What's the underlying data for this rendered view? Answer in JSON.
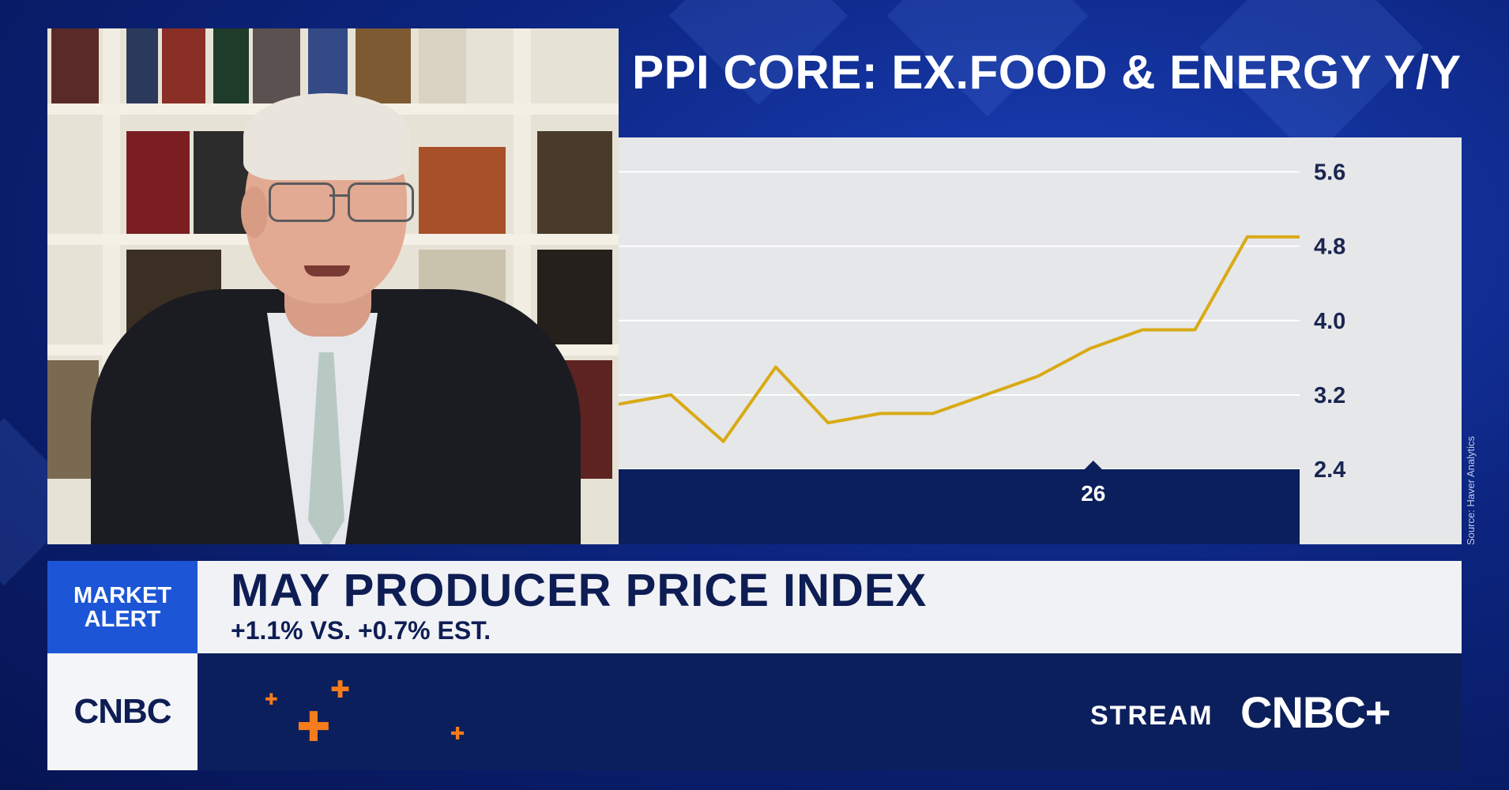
{
  "chart_data": {
    "type": "line",
    "title": "PPI CORE: EX.FOOD & ENERGY Y/Y",
    "y_ticks": [
      "5.6",
      "4.8",
      "4.0",
      "3.2",
      "2.4"
    ],
    "x_ticks": [
      "26"
    ],
    "ylim": [
      2.4,
      5.8
    ],
    "grid": true,
    "series": [
      {
        "values": [
          3.1,
          3.2,
          2.7,
          3.5,
          2.9,
          3.0,
          3.0,
          3.2,
          3.4,
          3.7,
          3.9,
          3.9,
          4.9,
          4.9
        ]
      }
    ],
    "colors": {
      "line": "#d9aa14",
      "grid": "#ffffff",
      "axis_band": "#0b1f5c"
    }
  },
  "source": "Source: Haver Analytics",
  "lower_third": {
    "alert_line1": "MARKET",
    "alert_line2": "ALERT",
    "headline": "MAY PRODUCER PRICE INDEX",
    "subline": "+1.1% VS. +0.7% EST.",
    "logo": "CNBC",
    "stream_label": "STREAM",
    "stream_logo": "CNBC+"
  },
  "icons": [
    "plus-icon",
    "plus-icon",
    "plus-icon",
    "plus-icon"
  ],
  "colors": {
    "brand_blue": "#1c56d6",
    "navy": "#0b1f5c",
    "accent_orange": "#f57c1c"
  }
}
